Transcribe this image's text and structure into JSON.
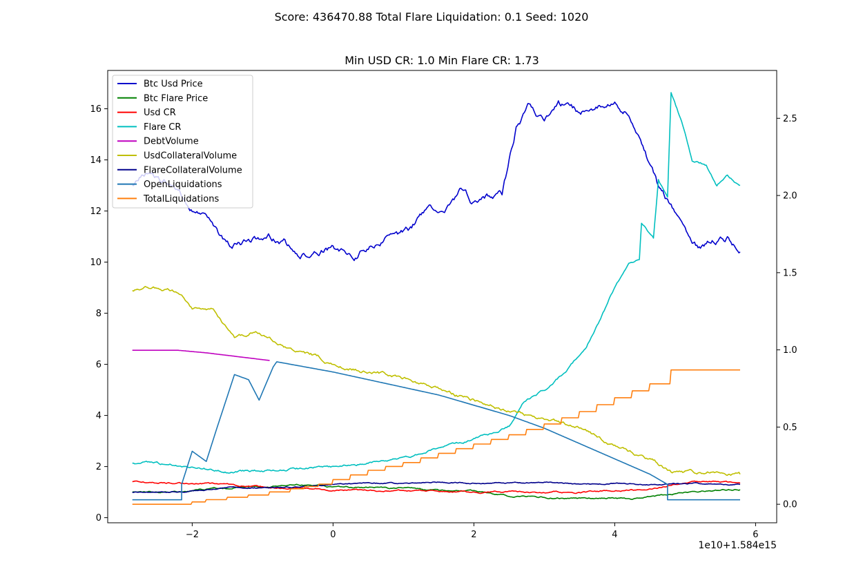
{
  "figure": {
    "suptitle": "Score: 436470.88 Total Flare Liquidation: 0.1 Seed: 1020"
  },
  "chart_data": {
    "type": "line",
    "title": "Min USD CR: 1.0 Min Flare CR: 1.73",
    "xlabel": "",
    "ylabel": "",
    "x_offset_text": "1e10+1.584e15",
    "xlim": [
      -3.2,
      6.3
    ],
    "ylim_left": [
      -0.2,
      17.5
    ],
    "ylim_right": [
      -0.12,
      2.81
    ],
    "x_ticks": [
      -2,
      0,
      2,
      4,
      6
    ],
    "x_tick_labels": [
      "−2",
      "0",
      "2",
      "4",
      "6"
    ],
    "y_ticks_left": [
      0,
      2,
      4,
      6,
      8,
      10,
      12,
      14,
      16
    ],
    "y_ticks_right": [
      0.0,
      0.5,
      1.0,
      1.5,
      2.0,
      2.5
    ],
    "y_tick_labels_right": [
      "0.0",
      "0.5",
      "1.0",
      "1.5",
      "2.0",
      "2.5"
    ],
    "grid": false,
    "legend_position": "top-left",
    "series": [
      {
        "name": "Btc Usd Price",
        "color": "#0000cc",
        "axis": "left",
        "noise": 0.18,
        "points": [
          [
            -2.85,
            13.1
          ],
          [
            -2.6,
            13.5
          ],
          [
            -2.3,
            13.0
          ],
          [
            -2.0,
            12.1
          ],
          [
            -1.8,
            11.8
          ],
          [
            -1.6,
            11.0
          ],
          [
            -1.45,
            10.6
          ],
          [
            -1.2,
            10.8
          ],
          [
            -0.9,
            11.0
          ],
          [
            -0.7,
            10.9
          ],
          [
            -0.5,
            10.1
          ],
          [
            -0.2,
            10.4
          ],
          [
            0.0,
            10.6
          ],
          [
            0.3,
            10.3
          ],
          [
            0.5,
            10.6
          ],
          [
            0.8,
            11.0
          ],
          [
            1.1,
            11.2
          ],
          [
            1.3,
            12.0
          ],
          [
            1.6,
            12.2
          ],
          [
            1.8,
            12.8
          ],
          [
            2.0,
            12.3
          ],
          [
            2.2,
            12.5
          ],
          [
            2.4,
            12.6
          ],
          [
            2.6,
            15.2
          ],
          [
            2.8,
            16.2
          ],
          [
            3.0,
            15.4
          ],
          [
            3.2,
            16.2
          ],
          [
            3.5,
            15.8
          ],
          [
            3.8,
            16.1
          ],
          [
            4.0,
            16.2
          ],
          [
            4.2,
            15.8
          ],
          [
            4.4,
            14.5
          ],
          [
            4.6,
            13.0
          ],
          [
            4.8,
            12.2
          ],
          [
            5.0,
            11.0
          ],
          [
            5.2,
            10.5
          ],
          [
            5.4,
            10.8
          ],
          [
            5.6,
            10.9
          ],
          [
            5.78,
            10.4
          ]
        ]
      },
      {
        "name": "Btc Flare Price",
        "color": "#008000",
        "axis": "left",
        "noise": 0.04,
        "points": [
          [
            -2.85,
            1.0
          ],
          [
            -2.2,
            1.0
          ],
          [
            -1.6,
            1.15
          ],
          [
            -1.0,
            1.2
          ],
          [
            -0.5,
            1.3
          ],
          [
            0.0,
            1.2
          ],
          [
            0.5,
            1.2
          ],
          [
            1.0,
            1.15
          ],
          [
            1.5,
            1.05
          ],
          [
            2.0,
            1.05
          ],
          [
            2.5,
            0.85
          ],
          [
            3.0,
            0.8
          ],
          [
            3.5,
            0.75
          ],
          [
            4.0,
            0.75
          ],
          [
            4.3,
            0.75
          ],
          [
            4.6,
            0.85
          ],
          [
            5.0,
            1.0
          ],
          [
            5.3,
            1.05
          ],
          [
            5.78,
            1.1
          ]
        ]
      },
      {
        "name": "Usd CR",
        "color": "#ff0000",
        "axis": "left",
        "noise": 0.04,
        "points": [
          [
            -2.85,
            1.4
          ],
          [
            -2.5,
            1.38
          ],
          [
            -2.2,
            1.35
          ],
          [
            -1.6,
            1.3
          ],
          [
            -1.0,
            1.2
          ],
          [
            -0.5,
            1.15
          ],
          [
            0.0,
            1.1
          ],
          [
            0.5,
            1.05
          ],
          [
            1.0,
            1.05
          ],
          [
            1.5,
            1.05
          ],
          [
            2.0,
            1.0
          ],
          [
            2.5,
            1.0
          ],
          [
            3.0,
            1.0
          ],
          [
            3.5,
            1.0
          ],
          [
            4.0,
            1.05
          ],
          [
            4.5,
            1.1
          ],
          [
            5.0,
            1.4
          ],
          [
            5.4,
            1.4
          ],
          [
            5.78,
            1.35
          ]
        ]
      },
      {
        "name": "Flare CR",
        "color": "#00bfbf",
        "axis": "left",
        "noise": 0.06,
        "points": [
          [
            -2.85,
            2.15
          ],
          [
            -2.5,
            2.1
          ],
          [
            -2.0,
            2.0
          ],
          [
            -1.5,
            1.8
          ],
          [
            -1.0,
            1.85
          ],
          [
            -0.5,
            1.9
          ],
          [
            0.0,
            2.0
          ],
          [
            0.5,
            2.15
          ],
          [
            1.0,
            2.3
          ],
          [
            1.5,
            2.7
          ],
          [
            2.0,
            3.1
          ],
          [
            2.3,
            3.3
          ],
          [
            2.5,
            3.6
          ],
          [
            2.7,
            4.5
          ],
          [
            3.0,
            5.0
          ],
          [
            3.3,
            5.7
          ],
          [
            3.6,
            6.7
          ],
          [
            3.8,
            7.8
          ],
          [
            4.0,
            9.0
          ],
          [
            4.2,
            10.0
          ],
          [
            4.35,
            10.1
          ],
          [
            4.38,
            11.5
          ],
          [
            4.55,
            10.9
          ],
          [
            4.62,
            13.2
          ],
          [
            4.75,
            12.5
          ],
          [
            4.8,
            16.6
          ],
          [
            4.95,
            15.5
          ],
          [
            5.1,
            14.0
          ],
          [
            5.3,
            13.8
          ],
          [
            5.45,
            13.0
          ],
          [
            5.6,
            13.4
          ],
          [
            5.78,
            13.0
          ]
        ]
      },
      {
        "name": "DebtVolume",
        "color": "#bf00bf",
        "axis": "left",
        "noise": 0,
        "points": [
          [
            -2.85,
            6.55
          ],
          [
            -2.2,
            6.55
          ],
          [
            -1.8,
            6.45
          ],
          [
            -1.5,
            6.35
          ],
          [
            -1.2,
            6.25
          ],
          [
            -0.9,
            6.15
          ],
          [
            -0.9,
            6.15
          ]
        ]
      },
      {
        "name": "UsdCollateralVolume",
        "color": "#bfbf00",
        "axis": "left",
        "noise": 0.09,
        "points": [
          [
            -2.85,
            8.9
          ],
          [
            -2.5,
            9.0
          ],
          [
            -2.2,
            8.8
          ],
          [
            -2.0,
            8.2
          ],
          [
            -1.7,
            8.2
          ],
          [
            -1.4,
            7.0
          ],
          [
            -1.1,
            7.3
          ],
          [
            -0.8,
            6.8
          ],
          [
            -0.5,
            6.5
          ],
          [
            -0.2,
            6.3
          ],
          [
            0.0,
            6.0
          ],
          [
            0.5,
            5.7
          ],
          [
            1.0,
            5.5
          ],
          [
            1.5,
            5.0
          ],
          [
            2.0,
            4.6
          ],
          [
            2.5,
            4.2
          ],
          [
            3.0,
            3.8
          ],
          [
            3.5,
            3.5
          ],
          [
            4.0,
            2.8
          ],
          [
            4.5,
            2.3
          ],
          [
            4.8,
            1.8
          ],
          [
            5.2,
            1.75
          ],
          [
            5.5,
            1.75
          ],
          [
            5.78,
            1.7
          ]
        ]
      },
      {
        "name": "FlareCollateralVolume",
        "color": "#00008b",
        "axis": "left",
        "noise": 0.03,
        "points": [
          [
            -2.85,
            1.0
          ],
          [
            -2.0,
            1.05
          ],
          [
            -1.5,
            1.2
          ],
          [
            -1.0,
            1.15
          ],
          [
            -0.5,
            1.2
          ],
          [
            0.0,
            1.3
          ],
          [
            0.5,
            1.35
          ],
          [
            1.0,
            1.35
          ],
          [
            1.5,
            1.4
          ],
          [
            2.0,
            1.35
          ],
          [
            2.5,
            1.35
          ],
          [
            3.0,
            1.4
          ],
          [
            3.5,
            1.3
          ],
          [
            4.0,
            1.35
          ],
          [
            4.5,
            1.3
          ],
          [
            5.0,
            1.35
          ],
          [
            5.5,
            1.3
          ],
          [
            5.78,
            1.3
          ]
        ]
      },
      {
        "name": "OpenLiquidations",
        "color": "#1f77b4",
        "axis": "left",
        "noise": 0,
        "points": [
          [
            -2.85,
            0.7
          ],
          [
            -2.15,
            0.7
          ],
          [
            -2.15,
            1.3
          ],
          [
            -2.0,
            2.6
          ],
          [
            -1.8,
            2.2
          ],
          [
            -1.65,
            3.5
          ],
          [
            -1.4,
            5.6
          ],
          [
            -1.2,
            5.4
          ],
          [
            -1.05,
            4.6
          ],
          [
            -0.85,
            5.9
          ],
          [
            -0.8,
            6.1
          ],
          [
            -0.5,
            5.95
          ],
          [
            0.0,
            5.7
          ],
          [
            0.5,
            5.4
          ],
          [
            1.0,
            5.1
          ],
          [
            1.5,
            4.8
          ],
          [
            2.0,
            4.4
          ],
          [
            2.5,
            4.0
          ],
          [
            3.0,
            3.5
          ],
          [
            3.5,
            2.9
          ],
          [
            4.0,
            2.3
          ],
          [
            4.5,
            1.7
          ],
          [
            4.75,
            1.3
          ],
          [
            4.75,
            0.7
          ],
          [
            5.78,
            0.7
          ]
        ]
      },
      {
        "name": "TotalLiquidations",
        "color": "#ff7f0e",
        "axis": "right",
        "points": [
          [
            -2.85,
            0.0
          ],
          [
            -2.2,
            0.0
          ],
          [
            -1.8,
            0.03
          ],
          [
            -1.2,
            0.06
          ],
          [
            -0.6,
            0.1
          ],
          [
            -0.2,
            0.13
          ],
          [
            0.0,
            0.16
          ],
          [
            0.5,
            0.22
          ],
          [
            1.0,
            0.27
          ],
          [
            1.5,
            0.33
          ],
          [
            2.0,
            0.39
          ],
          [
            2.5,
            0.45
          ],
          [
            3.0,
            0.52
          ],
          [
            3.5,
            0.6
          ],
          [
            4.0,
            0.69
          ],
          [
            4.5,
            0.78
          ],
          [
            4.8,
            0.87
          ],
          [
            5.78,
            0.87
          ]
        ]
      }
    ]
  }
}
